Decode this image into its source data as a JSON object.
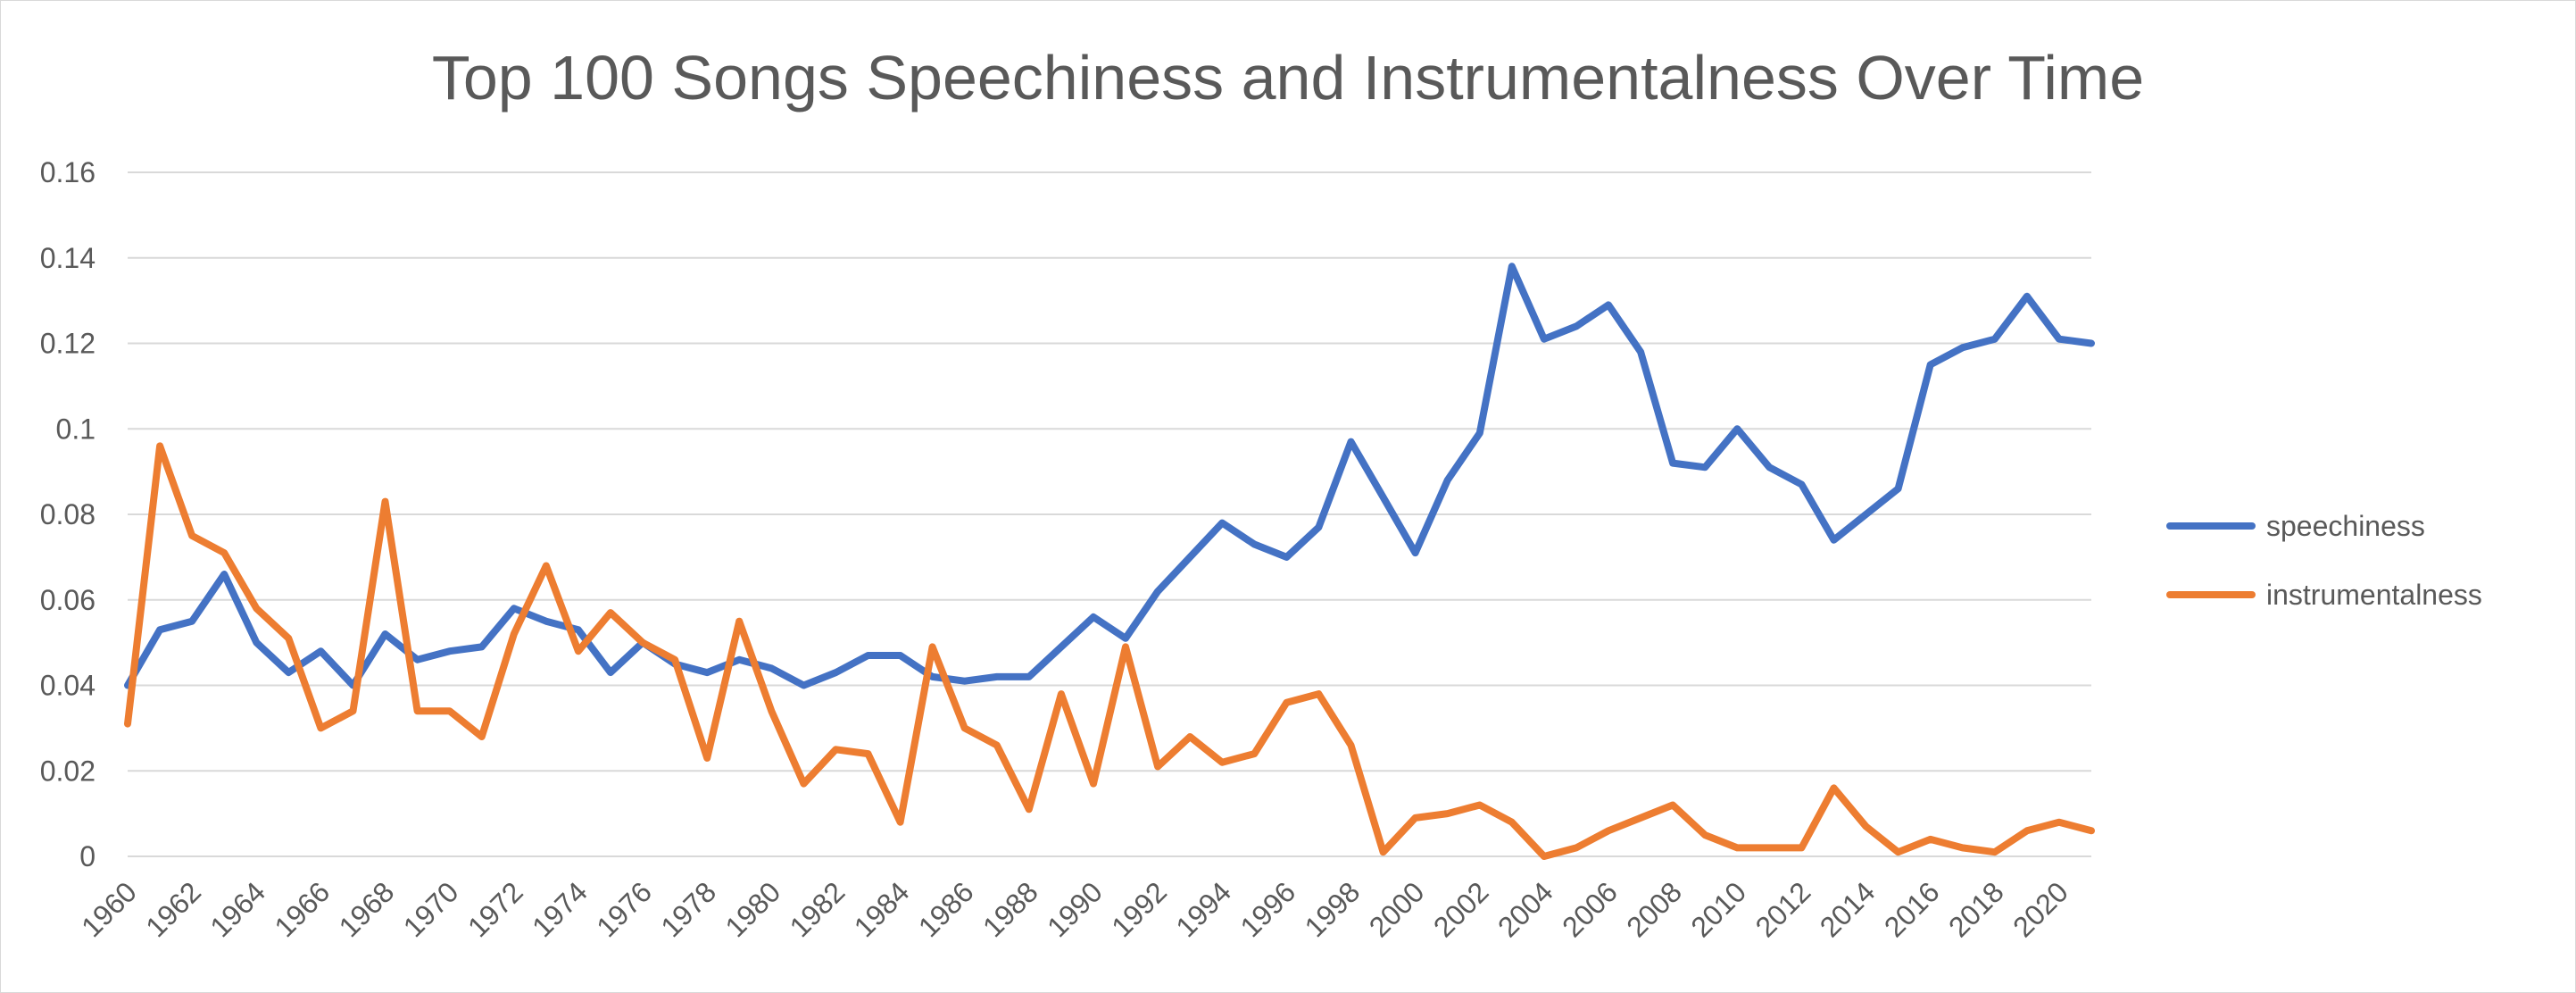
{
  "chart_data": {
    "type": "line",
    "title": "Top 100 Songs Speechiness and Instrumentalness Over Time",
    "xlabel": "",
    "ylabel": "",
    "x": [
      1960,
      1961,
      1962,
      1963,
      1964,
      1965,
      1966,
      1967,
      1968,
      1969,
      1970,
      1971,
      1972,
      1973,
      1974,
      1975,
      1976,
      1977,
      1978,
      1979,
      1980,
      1981,
      1982,
      1983,
      1984,
      1985,
      1986,
      1987,
      1988,
      1989,
      1990,
      1991,
      1992,
      1993,
      1994,
      1995,
      1996,
      1997,
      1998,
      1999,
      2000,
      2001,
      2002,
      2003,
      2004,
      2005,
      2006,
      2007,
      2008,
      2009,
      2010,
      2011,
      2012,
      2013,
      2014,
      2015,
      2016,
      2017,
      2018,
      2019,
      2020,
      2021
    ],
    "x_tick_labels": [
      "1960",
      "1962",
      "1964",
      "1966",
      "1968",
      "1970",
      "1972",
      "1974",
      "1976",
      "1978",
      "1980",
      "1982",
      "1984",
      "1986",
      "1988",
      "1990",
      "1992",
      "1994",
      "1996",
      "1998",
      "2000",
      "2002",
      "2004",
      "2006",
      "2008",
      "2010",
      "2012",
      "2014",
      "2016",
      "2018",
      "2020"
    ],
    "ylim": [
      0,
      0.16
    ],
    "y_ticks": [
      0,
      0.02,
      0.04,
      0.06,
      0.08,
      0.1,
      0.12,
      0.14,
      0.16
    ],
    "y_tick_labels": [
      "0",
      "0.02",
      "0.04",
      "0.06",
      "0.08",
      "0.1",
      "0.12",
      "0.14",
      "0.16"
    ],
    "grid": true,
    "legend_position": "right",
    "series": [
      {
        "name": "speechiness",
        "color": "#4472C4",
        "values": [
          0.04,
          0.053,
          0.055,
          0.066,
          0.05,
          0.043,
          0.048,
          0.04,
          0.052,
          0.046,
          0.048,
          0.049,
          0.058,
          0.055,
          0.053,
          0.043,
          0.05,
          0.045,
          0.043,
          0.046,
          0.044,
          0.04,
          0.043,
          0.047,
          0.047,
          0.042,
          0.041,
          0.042,
          0.042,
          0.049,
          0.056,
          0.051,
          0.062,
          0.07,
          0.078,
          0.073,
          0.07,
          0.077,
          0.097,
          0.084,
          0.071,
          0.088,
          0.099,
          0.138,
          0.121,
          0.124,
          0.129,
          0.118,
          0.092,
          0.091,
          0.1,
          0.091,
          0.087,
          0.074,
          0.08,
          0.086,
          0.115,
          0.119,
          0.121,
          0.131,
          0.121,
          0.12
        ]
      },
      {
        "name": "instrumentalness",
        "color": "#ED7D31",
        "values": [
          0.031,
          0.096,
          0.075,
          0.071,
          0.058,
          0.051,
          0.03,
          0.034,
          0.083,
          0.034,
          0.034,
          0.028,
          0.052,
          0.068,
          0.048,
          0.057,
          0.05,
          0.046,
          0.023,
          0.055,
          0.034,
          0.017,
          0.025,
          0.024,
          0.008,
          0.049,
          0.03,
          0.026,
          0.011,
          0.038,
          0.017,
          0.049,
          0.021,
          0.028,
          0.022,
          0.024,
          0.036,
          0.038,
          0.026,
          0.001,
          0.009,
          0.01,
          0.012,
          0.008,
          0.0,
          0.002,
          0.006,
          0.009,
          0.012,
          0.005,
          0.002,
          0.002,
          0.002,
          0.016,
          0.007,
          0.001,
          0.004,
          0.002,
          0.001,
          0.006,
          0.008,
          0.006
        ]
      }
    ]
  }
}
